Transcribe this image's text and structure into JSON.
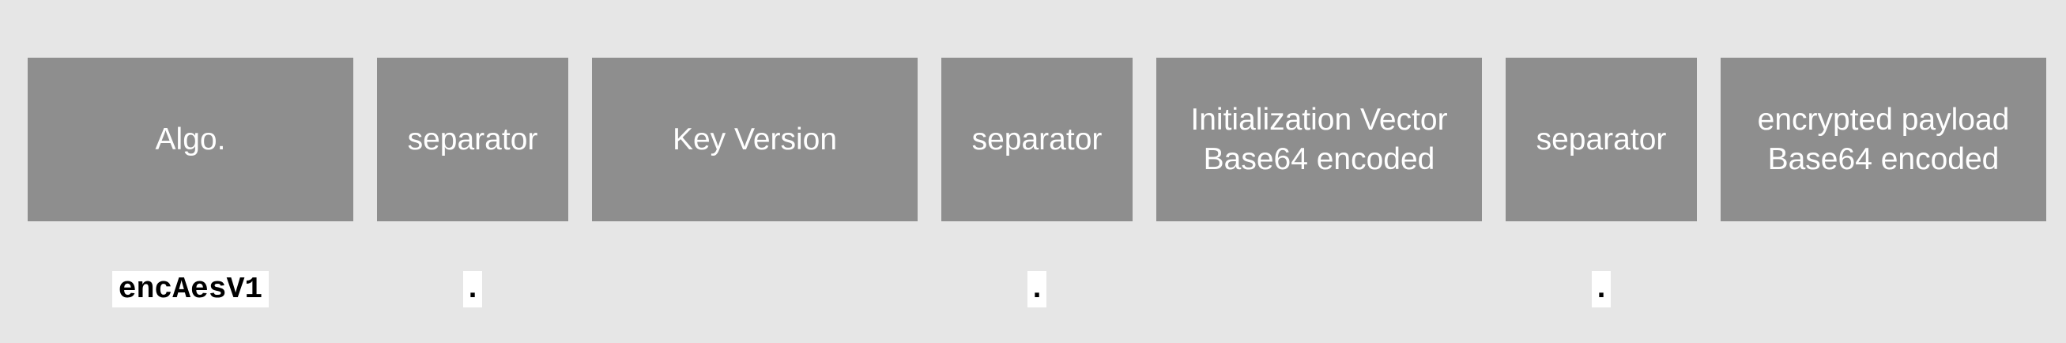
{
  "segments": [
    {
      "label": "Algo."
    },
    {
      "label": "separator"
    },
    {
      "label": "Key Version"
    },
    {
      "label": "separator"
    },
    {
      "label": "Initialization Vector\nBase64 encoded"
    },
    {
      "label": "separator"
    },
    {
      "label": "encrypted payload\nBase64 encoded"
    }
  ],
  "examples": {
    "algo": "encAesV1",
    "sep1": ".",
    "sep2": ".",
    "sep3": "."
  },
  "colors": {
    "background": "#e6e6e6",
    "segment_fill": "#8e8e8e",
    "segment_text": "#ffffff",
    "example_fill": "#ffffff",
    "example_text": "#000000"
  }
}
